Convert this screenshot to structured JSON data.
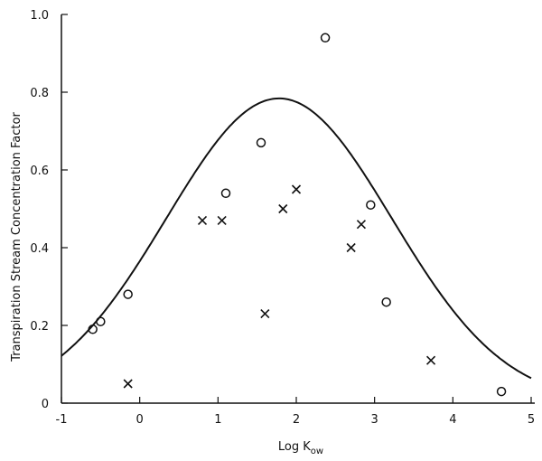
{
  "chart_data": {
    "type": "scatter",
    "title": "",
    "xlabel": "Log K",
    "xlabel_sub": "ow",
    "ylabel": "Transpiration Stream Concentration Factor",
    "xlim": [
      -1,
      5
    ],
    "ylim": [
      0,
      1.0
    ],
    "x_ticks": [
      -1,
      0,
      1,
      2,
      3,
      4,
      5
    ],
    "x_tick_labels": [
      "-1",
      "0",
      "1",
      "2",
      "3",
      "4",
      "5"
    ],
    "y_ticks": [
      0,
      0.2,
      0.4,
      0.6,
      0.8,
      1.0
    ],
    "y_tick_labels": [
      "0",
      "0.2",
      "0.4",
      "0.6",
      "0.8",
      "1.0"
    ],
    "grid": false,
    "series": [
      {
        "marker": "circle",
        "x": [
          -0.6,
          -0.5,
          -0.15,
          1.1,
          1.55,
          2.37,
          2.95,
          3.15,
          4.62
        ],
        "y": [
          0.19,
          0.21,
          0.28,
          0.54,
          0.67,
          0.94,
          0.51,
          0.26,
          0.03
        ]
      },
      {
        "marker": "cross",
        "x": [
          -0.15,
          0.8,
          1.05,
          1.6,
          1.83,
          2.0,
          2.7,
          2.83,
          3.72
        ],
        "y": [
          0.05,
          0.47,
          0.47,
          0.23,
          0.5,
          0.55,
          0.4,
          0.46,
          0.11
        ]
      }
    ],
    "fit_curve": {
      "type": "gaussian",
      "amplitude": 0.784,
      "mean": 1.78,
      "sd": 1.44
    }
  }
}
